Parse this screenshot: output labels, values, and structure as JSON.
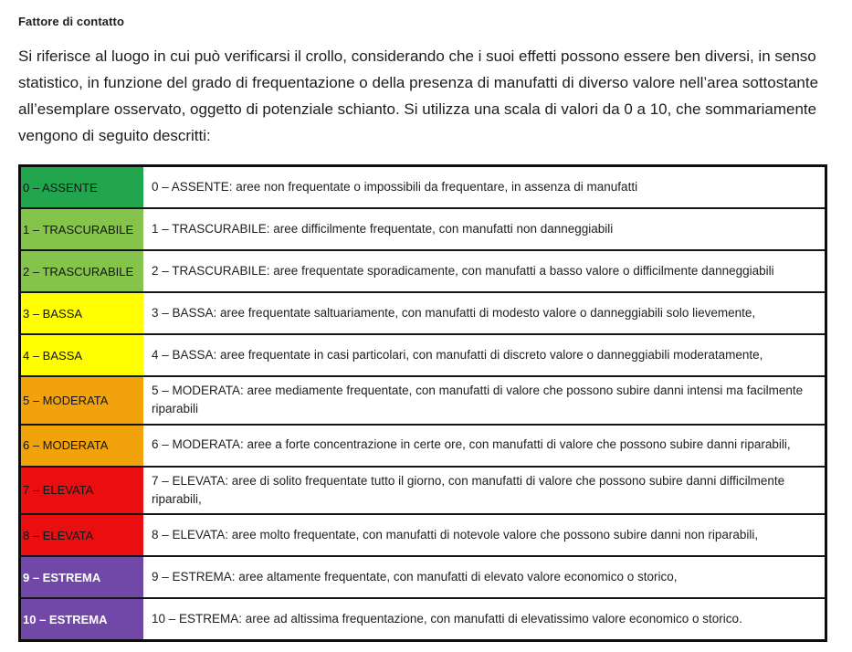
{
  "page": {
    "title": "Fattore di contatto",
    "intro": "Si riferisce al luogo in cui può verificarsi il crollo, considerando che i suoi effetti possono essere ben diversi, in senso statistico, in funzione del grado di frequentazione o della presenza di manufatti di diverso valore nell’area sottostante all’esemplare osservato, oggetto di potenziale schianto. Si utilizza una scala di valori da 0 a 10, che sommariamente vengono di seguito descritti:"
  },
  "palette": {
    "green": "#21A64E",
    "light_green": "#84C44A",
    "yellow": "#FFFF00",
    "orange": "#F2A30B",
    "red": "#EA0E11",
    "purple": "#7148A8",
    "border_black": "#0d0d0d"
  },
  "table": {
    "rows": [
      {
        "label": "0 – ASSENTE",
        "description": "0 – ASSENTE: aree non frequentate o impossibili da frequentare, in assenza di manufatti",
        "color": "#21A64E",
        "label_text_color": "#141414",
        "label_bold": false
      },
      {
        "label": "1 – TRASCURABILE",
        "description": "1 – TRASCURABILE: aree difficilmente frequentate, con manufatti non danneggiabili",
        "color": "#84C44A",
        "label_text_color": "#141414",
        "label_bold": false
      },
      {
        "label": "2 – TRASCURABILE",
        "description": "2 – TRASCURABILE: aree frequentate sporadicamente, con manufatti a basso valore o difficilmente danneggiabili",
        "color": "#84C44A",
        "label_text_color": "#141414",
        "label_bold": false
      },
      {
        "label": "3 – BASSA",
        "description": "3 – BASSA: aree frequentate saltuariamente, con manufatti di modesto valore o danneggiabili solo lievemente,",
        "color": "#FFFF00",
        "label_text_color": "#141414",
        "label_bold": false
      },
      {
        "label": "4 – BASSA",
        "description": "4 – BASSA: aree frequentate in casi particolari, con manufatti di discreto valore o danneggiabili moderatamente,",
        "color": "#FFFF00",
        "label_text_color": "#141414",
        "label_bold": false
      },
      {
        "label": "5 – MODERATA",
        "description": "5 – MODERATA: aree mediamente frequentate, con manufatti di valore che possono subire danni intensi ma facilmente riparabili",
        "color": "#F2A30B",
        "label_text_color": "#141414",
        "label_bold": false
      },
      {
        "label": "6 – MODERATA",
        "description": "6 – MODERATA: aree a forte concentrazione in certe ore, con manufatti di valore che possono subire danni riparabili,",
        "color": "#F2A30B",
        "label_text_color": "#141414",
        "label_bold": false
      },
      {
        "label": "7 – ELEVATA",
        "description": "7 – ELEVATA: aree di solito frequentate tutto il giorno, con manufatti di valore che possono subire danni difficilmente riparabili,",
        "color": "#EA0E11",
        "label_text_color": "#141414",
        "label_bold": false
      },
      {
        "label": "8 – ELEVATA",
        "description": "8 – ELEVATA: aree molto frequentate, con manufatti di notevole valore che possono subire danni non riparabili,",
        "color": "#EA0E11",
        "label_text_color": "#141414",
        "label_bold": false
      },
      {
        "label": "9 – ESTREMA",
        "description": "9 – ESTREMA: aree altamente frequentate, con manufatti di elevato valore economico o storico,",
        "color": "#7148A8",
        "label_text_color": "#FFFFFF",
        "label_bold": true
      },
      {
        "label": "10 – ESTREMA",
        "description": "10 – ESTREMA: aree ad altissima frequentazione, con manufatti di elevatissimo valore economico o storico.",
        "color": "#7148A8",
        "label_text_color": "#FFFFFF",
        "label_bold": true
      }
    ]
  }
}
